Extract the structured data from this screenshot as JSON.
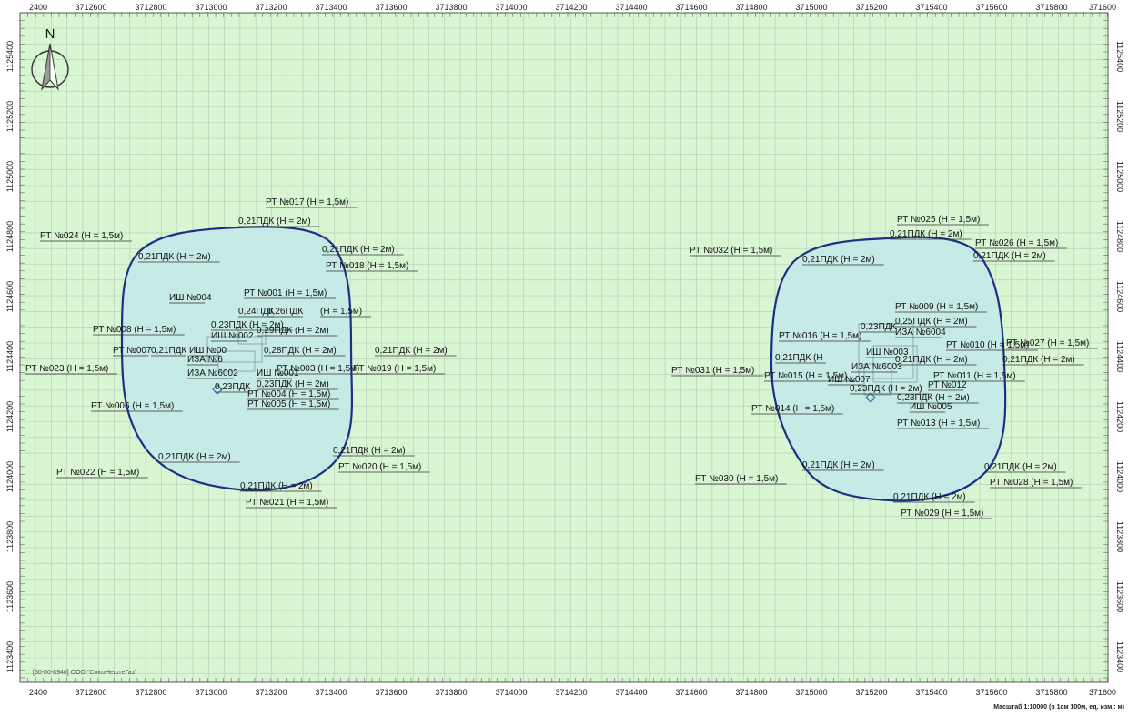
{
  "x_ticks": [
    "2400",
    "3712600",
    "3712800",
    "3713000",
    "3713200",
    "3713400",
    "3713600",
    "3713800",
    "3714000",
    "3714200",
    "3714400",
    "3714600",
    "3714800",
    "3715000",
    "3715200",
    "3715400",
    "3715600",
    "3715800",
    "371600"
  ],
  "y_ticks": [
    "1125400",
    "1125200",
    "1125000",
    "1124800",
    "1124600",
    "1124400",
    "1124200",
    "1124000",
    "1123800",
    "1123600",
    "1123400"
  ],
  "north": "N",
  "footer": "[60-00-8940] ООО \"СоюзНефтеГаз\"",
  "scale": "Масштаб 1:10000 (в 1см 100м, ед. изм.: м)",
  "colors": {
    "map_bg": "#d8f6d2",
    "grid": "#b9c7b9",
    "zone_fill": "#c6ebe6",
    "zone_stroke": "#1e2f86"
  },
  "labels_left": [
    "РТ №017 (Н = 1,5м)",
    "0,21ПДК (Н = 2м)",
    "РТ №024 (Н = 1,5м)",
    "0,21ПДК (Н = 2м)",
    "0,21ПДК (Н = 2м)",
    "РТ №018 (Н = 1,5м)",
    "ИШ №004",
    "РТ №001 (Н = 1,5м)",
    "0,24ПДК",
    "0,26ПДК",
    "(Н = 1,5м)",
    "РТ №008 (Н = 1,5м)",
    "0,23ПДК (Н = 2м)",
    "ИШ №002",
    "0,29ПДК (Н = 2м)",
    "РТ №007",
    "0,21ПДК",
    "ИШ №00",
    "0,28ПДК (Н = 2м)",
    "0,21ПДК (Н = 2м)",
    "РТ №023 (Н = 1,5м)",
    "ИЗА №6",
    "РТ №003 (Н = 1,5м)",
    "РТ №019 (Н = 1,5м)",
    "ИЗА №6002",
    "ИШ №001",
    "0,23ПДК (Н = 2м)",
    "0,23ПДК",
    "РТ №004 (Н = 1,5м)",
    "РТ №006 (Н = 1,5м)",
    "РТ №005 (Н = 1,5м)",
    "0,21ПДК (Н = 2м)",
    "0,21ПДК (Н = 2м)",
    "РТ №022 (Н = 1,5м)",
    "РТ №020 (Н = 1,5м)",
    "0,21ПДК (Н = 2м)",
    "РТ №021 (Н = 1,5м)"
  ],
  "labels_right": [
    "РТ №025 (Н = 1,5м)",
    "0,21ПДК (Н = 2м)",
    "РТ №026 (Н = 1,5м)",
    "0,21ПДК (Н = 2м)",
    "РТ №032 (Н = 1,5м)",
    "0,21ПДК (Н = 2м)",
    "РТ №009 (Н = 1,5м)",
    "0,25ПДК (Н = 2м)",
    "0,23ПДК",
    "ИЗА №6004",
    "РТ №016 (Н = 1,5м)",
    "РТ №010 (Н = 1,5м)",
    "РТ №027 (Н = 1,5м)",
    "ИШ №003",
    "0,21ПДК (Н",
    "0,21ПДК (Н = 2м)",
    "0,21ПДК (Н = 2м)",
    "РТ №031 (Н = 1,5м)",
    "РТ №015 (Н = 1,5м)",
    "ИЗА №6003",
    "РТ №011 (Н = 1,5м)",
    "ИШ №007",
    "РТ №012",
    "0,23ПДК (Н = 2м)",
    "0,23ПДК (Н = 2м)",
    "РТ №014 (Н = 1,5м)",
    "ИШ №005",
    "РТ №013 (Н = 1,5м)",
    "0,21ПДК (Н = 2м)",
    "0,21ПДК (Н = 2м)",
    "РТ №030 (Н = 1,5м)",
    "РТ №028 (Н = 1,5м)",
    "0,21ПДК (Н = 2м)",
    "РТ №029 (Н = 1,5м)"
  ]
}
